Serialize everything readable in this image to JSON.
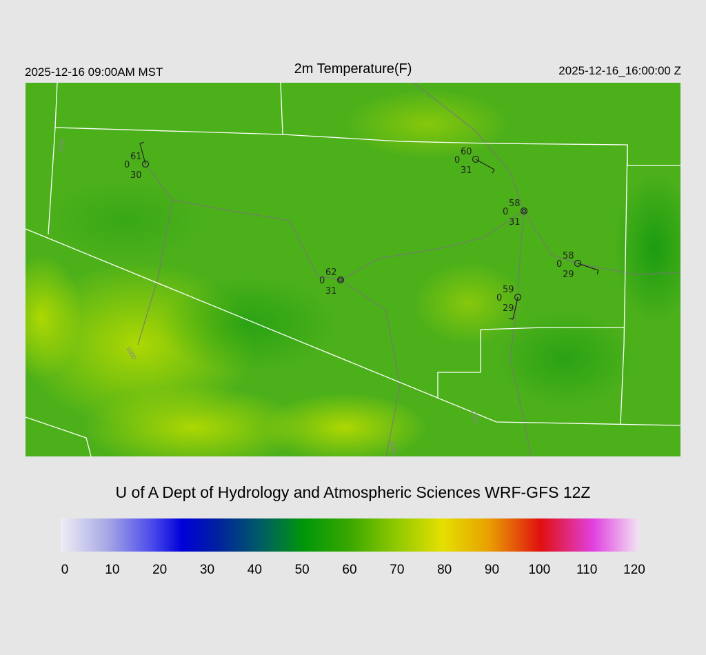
{
  "header": {
    "left": "2025-12-16 09:00AM MST",
    "title": "2m Temperature(F)",
    "right": "2025-12-16_16:00:00 Z"
  },
  "stations": [
    {
      "top": "61",
      "left": "0",
      "bottom": "30"
    },
    {
      "top": "60",
      "left": "0",
      "bottom": "31"
    },
    {
      "top": "58",
      "left": "0",
      "bottom": "31"
    },
    {
      "top": "58",
      "left": "0",
      "bottom": "29"
    },
    {
      "top": "59",
      "left": "0",
      "bottom": "29"
    },
    {
      "top": "62",
      "left": "0",
      "bottom": "31"
    }
  ],
  "contour_labels": [
    "1000",
    "1000",
    "3000",
    "1000"
  ],
  "credit": "U of A Dept of Hydrology and Atmospheric Sciences WRF-GFS 12Z",
  "colorbar": {
    "ticks": [
      0,
      10,
      20,
      30,
      40,
      50,
      60,
      70,
      80,
      90,
      100,
      110,
      120
    ]
  }
}
